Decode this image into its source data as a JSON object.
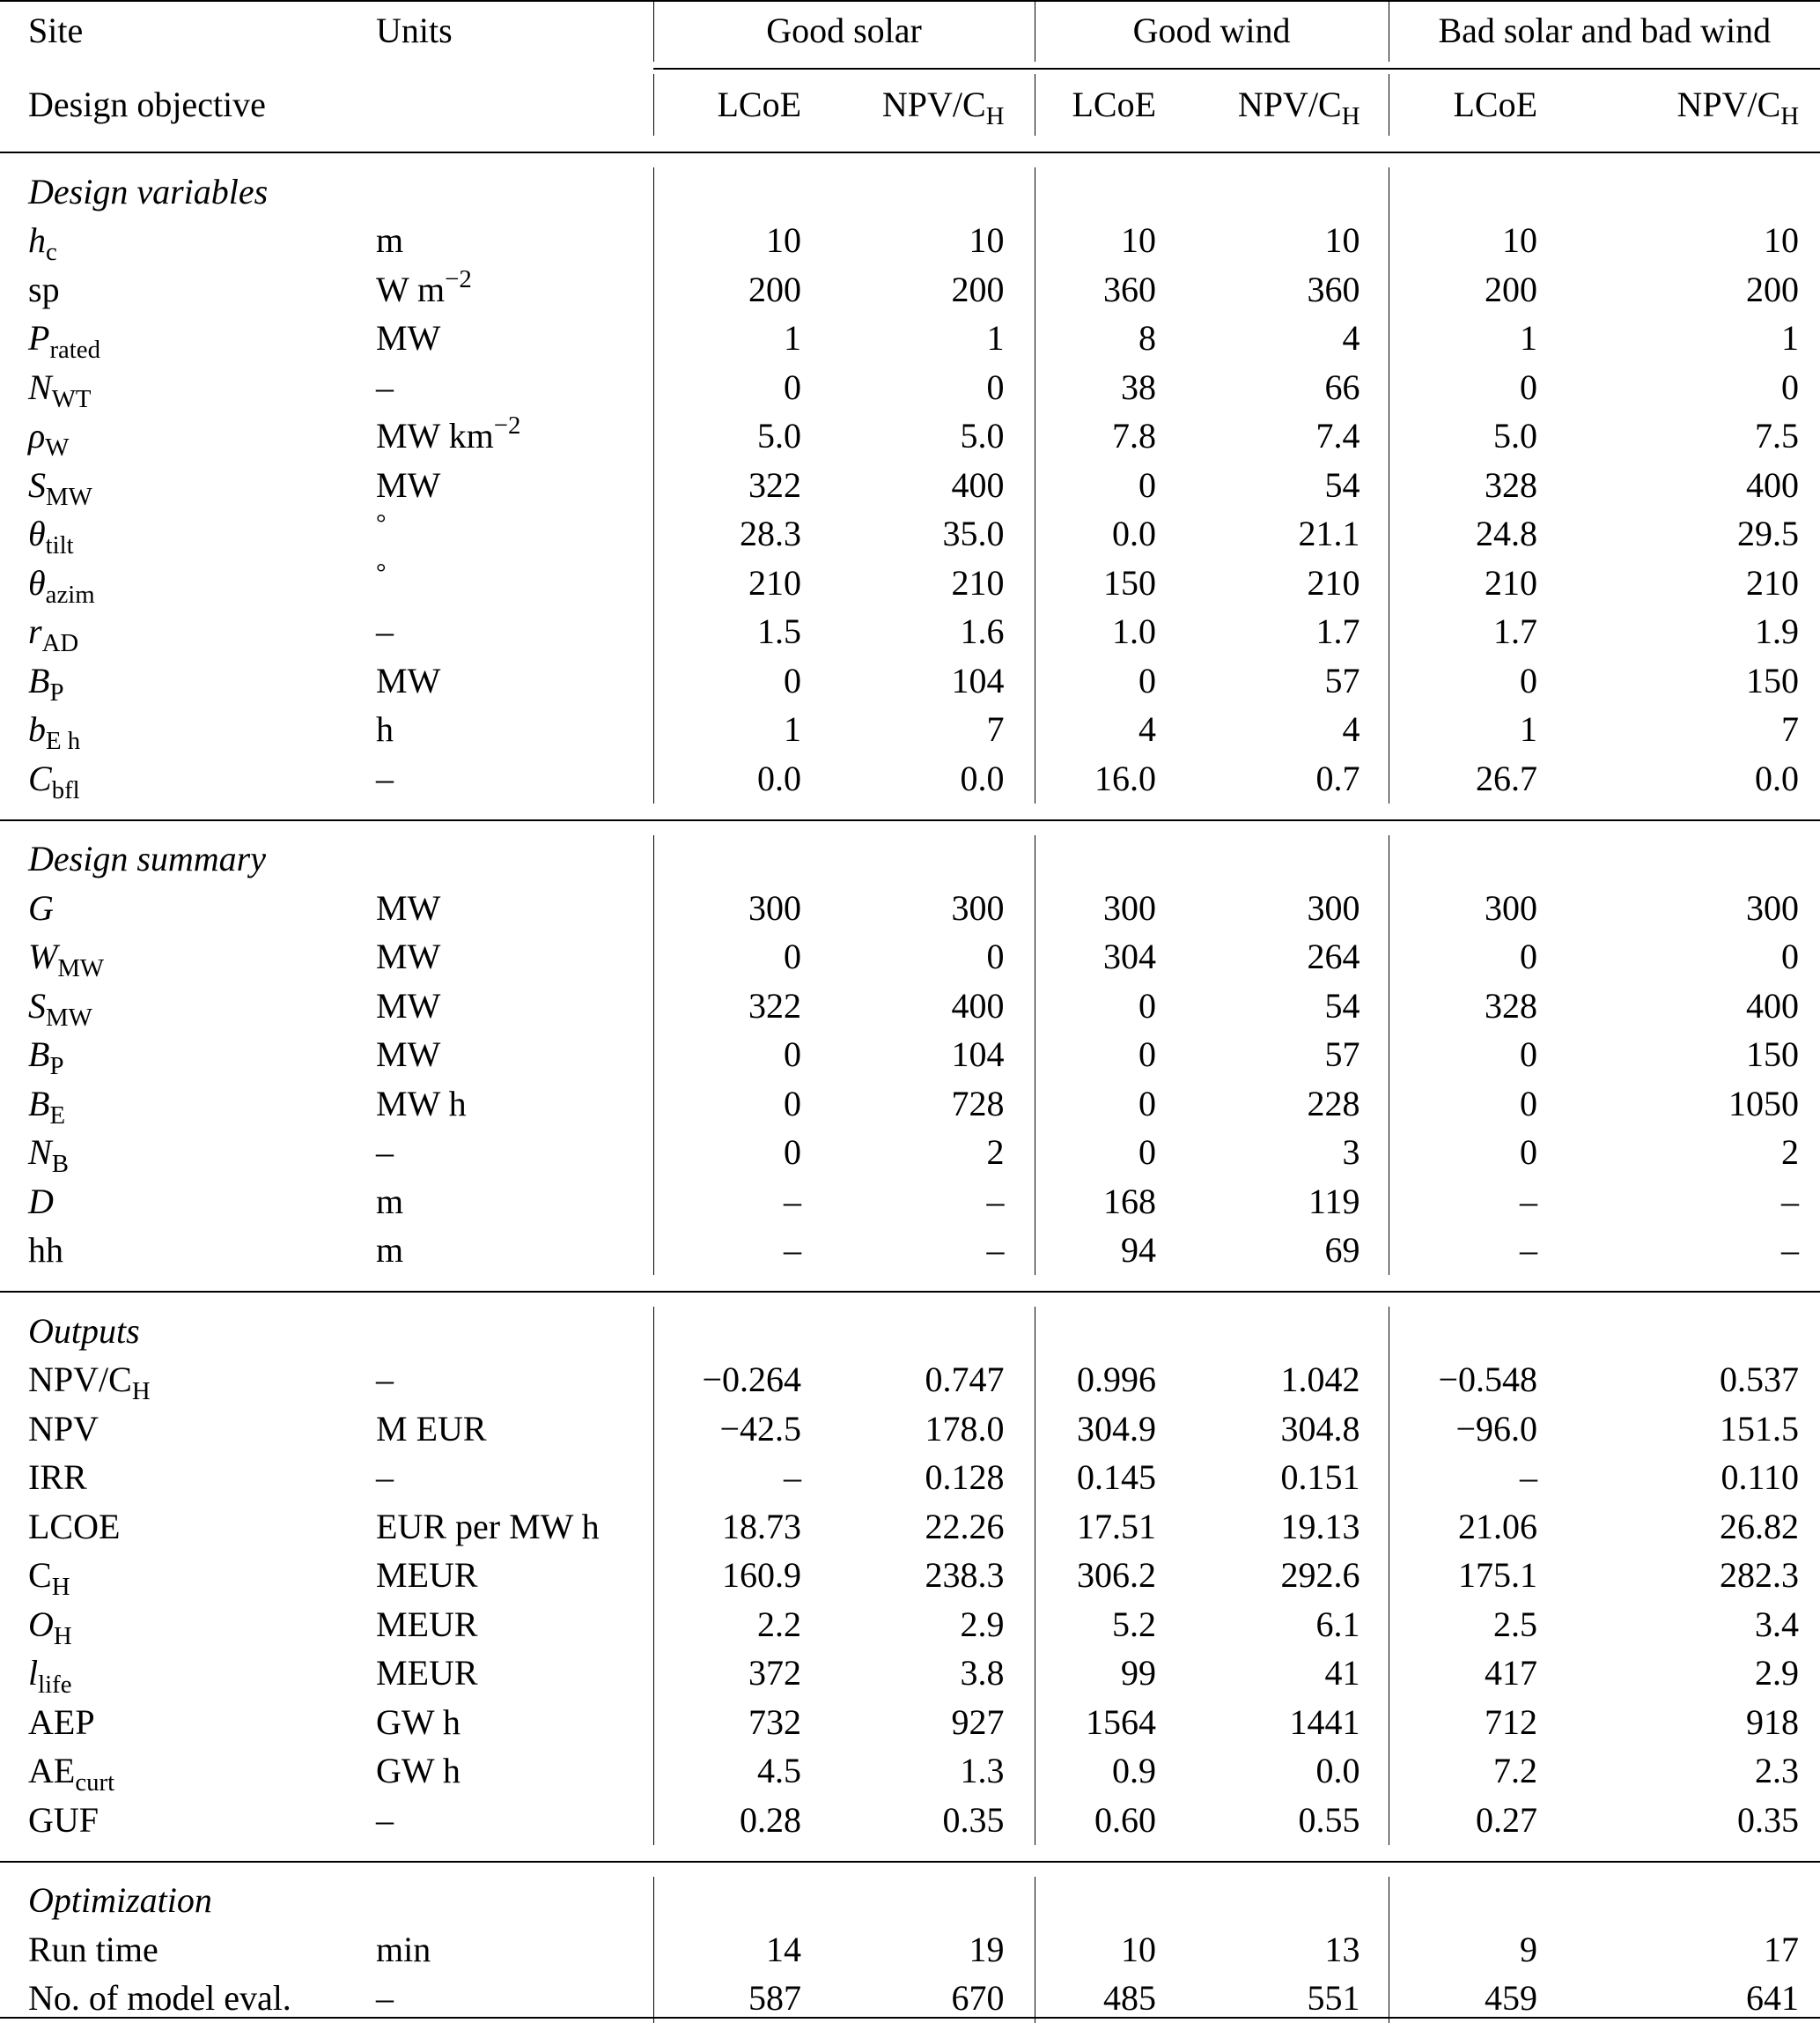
{
  "header": {
    "site_label": "Site",
    "units_label": "Units",
    "sites": [
      "Good solar",
      "Good wind",
      "Bad solar and bad wind"
    ],
    "objective_label": "Design objective",
    "objectives": [
      {
        "text": "LCoE",
        "sub": ""
      },
      {
        "text": "NPV/C",
        "sub": "H"
      },
      {
        "text": "LCoE",
        "sub": ""
      },
      {
        "text": "NPV/C",
        "sub": "H"
      },
      {
        "text": "LCoE",
        "sub": ""
      },
      {
        "text": "NPV/C",
        "sub": "H"
      }
    ]
  },
  "sections": [
    {
      "title": "Design variables",
      "rows": [
        {
          "sym": "h",
          "sub": "c",
          "italic": true,
          "unit": "m",
          "usup": "",
          "values": [
            "10",
            "10",
            "10",
            "10",
            "10",
            "10"
          ]
        },
        {
          "sym": "sp",
          "sub": "",
          "italic": false,
          "unit": "W m",
          "usup": "−2",
          "values": [
            "200",
            "200",
            "360",
            "360",
            "200",
            "200"
          ]
        },
        {
          "sym": "P",
          "sub": "rated",
          "italic": true,
          "unit": "MW",
          "usup": "",
          "values": [
            "1",
            "1",
            "8",
            "4",
            "1",
            "1"
          ]
        },
        {
          "sym": "N",
          "sub": "WT",
          "italic": true,
          "unit": "–",
          "usup": "",
          "values": [
            "0",
            "0",
            "38",
            "66",
            "0",
            "0"
          ]
        },
        {
          "sym": "ρ",
          "sub": "W",
          "italic": true,
          "unit": "MW km",
          "usup": "−2",
          "values": [
            "5.0",
            "5.0",
            "7.8",
            "7.4",
            "5.0",
            "7.5"
          ]
        },
        {
          "sym": "S",
          "sub": "MW",
          "italic": true,
          "unit": "MW",
          "usup": "",
          "values": [
            "322",
            "400",
            "0",
            "54",
            "328",
            "400"
          ]
        },
        {
          "sym": "θ",
          "sub": "tilt",
          "italic": true,
          "unit": "",
          "usup": "°",
          "values": [
            "28.3",
            "35.0",
            "0.0",
            "21.1",
            "24.8",
            "29.5"
          ]
        },
        {
          "sym": "θ",
          "sub": "azim",
          "italic": true,
          "unit": "",
          "usup": "°",
          "values": [
            "210",
            "210",
            "150",
            "210",
            "210",
            "210"
          ]
        },
        {
          "sym": "r",
          "sub": "AD",
          "italic": true,
          "unit": "–",
          "usup": "",
          "values": [
            "1.5",
            "1.6",
            "1.0",
            "1.7",
            "1.7",
            "1.9"
          ]
        },
        {
          "sym": "B",
          "sub": "P",
          "italic": true,
          "unit": "MW",
          "usup": "",
          "values": [
            "0",
            "104",
            "0",
            "57",
            "0",
            "150"
          ]
        },
        {
          "sym": "b",
          "sub": "E h",
          "italic": true,
          "unit": "h",
          "usup": "",
          "values": [
            "1",
            "7",
            "4",
            "4",
            "1",
            "7"
          ]
        },
        {
          "sym": "C",
          "sub": "bfl",
          "italic": true,
          "unit": "–",
          "usup": "",
          "values": [
            "0.0",
            "0.0",
            "16.0",
            "0.7",
            "26.7",
            "0.0"
          ]
        }
      ]
    },
    {
      "title": "Design summary",
      "rows": [
        {
          "sym": "G",
          "sub": "",
          "italic": true,
          "unit": "MW",
          "usup": "",
          "values": [
            "300",
            "300",
            "300",
            "300",
            "300",
            "300"
          ]
        },
        {
          "sym": "W",
          "sub": "MW",
          "italic": true,
          "unit": "MW",
          "usup": "",
          "values": [
            "0",
            "0",
            "304",
            "264",
            "0",
            "0"
          ]
        },
        {
          "sym": "S",
          "sub": "MW",
          "italic": true,
          "unit": "MW",
          "usup": "",
          "values": [
            "322",
            "400",
            "0",
            "54",
            "328",
            "400"
          ]
        },
        {
          "sym": "B",
          "sub": "P",
          "italic": true,
          "unit": "MW",
          "usup": "",
          "values": [
            "0",
            "104",
            "0",
            "57",
            "0",
            "150"
          ]
        },
        {
          "sym": "B",
          "sub": "E",
          "italic": true,
          "unit": "MW h",
          "usup": "",
          "values": [
            "0",
            "728",
            "0",
            "228",
            "0",
            "1050"
          ]
        },
        {
          "sym": "N",
          "sub": "B",
          "italic": true,
          "unit": "–",
          "usup": "",
          "values": [
            "0",
            "2",
            "0",
            "3",
            "0",
            "2"
          ]
        },
        {
          "sym": "D",
          "sub": "",
          "italic": true,
          "unit": "m",
          "usup": "",
          "values": [
            "–",
            "–",
            "168",
            "119",
            "–",
            "–"
          ]
        },
        {
          "sym": "hh",
          "sub": "",
          "italic": false,
          "unit": "m",
          "usup": "",
          "values": [
            "–",
            "–",
            "94",
            "69",
            "–",
            "–"
          ]
        }
      ]
    },
    {
      "title": "Outputs",
      "rows": [
        {
          "sym": "NPV/C",
          "sub": "H",
          "italic": false,
          "unit": "–",
          "usup": "",
          "values": [
            "−0.264",
            "0.747",
            "0.996",
            "1.042",
            "−0.548",
            "0.537"
          ]
        },
        {
          "sym": "NPV",
          "sub": "",
          "italic": false,
          "unit": "M EUR",
          "usup": "",
          "values": [
            "−42.5",
            "178.0",
            "304.9",
            "304.8",
            "−96.0",
            "151.5"
          ]
        },
        {
          "sym": "IRR",
          "sub": "",
          "italic": false,
          "unit": "–",
          "usup": "",
          "values": [
            "–",
            "0.128",
            "0.145",
            "0.151",
            "–",
            "0.110"
          ]
        },
        {
          "sym": "LCOE",
          "sub": "",
          "italic": false,
          "unit": "EUR per MW h",
          "usup": "",
          "values": [
            "18.73",
            "22.26",
            "17.51",
            "19.13",
            "21.06",
            "26.82"
          ]
        },
        {
          "sym": "C",
          "sub": "H",
          "italic": false,
          "unit": "MEUR",
          "usup": "",
          "values": [
            "160.9",
            "238.3",
            "306.2",
            "292.6",
            "175.1",
            "282.3"
          ]
        },
        {
          "sym": "O",
          "sub": "H",
          "italic": true,
          "unit": "MEUR",
          "usup": "",
          "values": [
            "2.2",
            "2.9",
            "5.2",
            "6.1",
            "2.5",
            "3.4"
          ]
        },
        {
          "sym": "l",
          "sub": "life",
          "italic": true,
          "unit": "MEUR",
          "usup": "",
          "values": [
            "372",
            "3.8",
            "99",
            "41",
            "417",
            "2.9"
          ]
        },
        {
          "sym": "AEP",
          "sub": "",
          "italic": false,
          "unit": "GW h",
          "usup": "",
          "values": [
            "732",
            "927",
            "1564",
            "1441",
            "712",
            "918"
          ]
        },
        {
          "sym": "AE",
          "sub": "curt",
          "italic": false,
          "unit": "GW h",
          "usup": "",
          "values": [
            "4.5",
            "1.3",
            "0.9",
            "0.0",
            "7.2",
            "2.3"
          ]
        },
        {
          "sym": "GUF",
          "sub": "",
          "italic": false,
          "unit": "–",
          "usup": "",
          "values": [
            "0.28",
            "0.35",
            "0.60",
            "0.55",
            "0.27",
            "0.35"
          ]
        }
      ]
    },
    {
      "title": "Optimization",
      "rows": [
        {
          "sym": "Run time",
          "sub": "",
          "italic": false,
          "unit": "min",
          "usup": "",
          "values": [
            "14",
            "19",
            "10",
            "13",
            "9",
            "17"
          ]
        },
        {
          "sym": "No. of model eval.",
          "sub": "",
          "italic": false,
          "unit": "–",
          "usup": "",
          "values": [
            "587",
            "670",
            "485",
            "551",
            "459",
            "641"
          ]
        }
      ]
    }
  ]
}
